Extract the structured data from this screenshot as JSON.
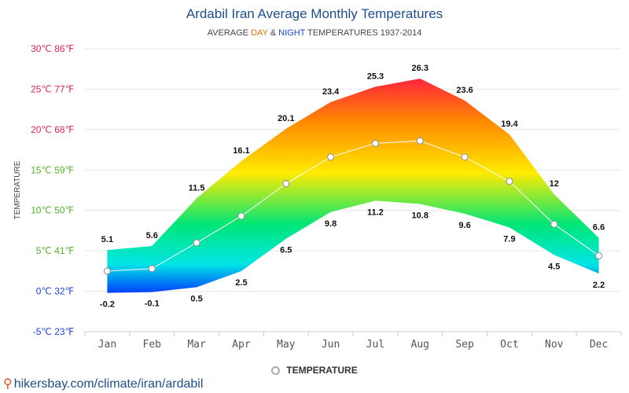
{
  "header": {
    "title": "Ardabil Iran Average Monthly Temperatures",
    "subtitle_prefix": "AVERAGE",
    "subtitle_day": "DAY",
    "subtitle_amp": "&",
    "subtitle_night": "NIGHT",
    "subtitle_suffix": "TEMPERATURES 1937-2014"
  },
  "legend": {
    "label": "TEMPERATURE",
    "icon": "circle-marker-icon"
  },
  "footer": {
    "icon": "location-pin-icon",
    "url": "hikersbay.com/climate/iran/ardabil"
  },
  "colors": {
    "title": "#1f4e8c",
    "day": "#e8700a",
    "night": "#1a45d8",
    "grid": "#e6e6e6",
    "gradient": [
      "#ff1744",
      "#ff8a00",
      "#ffeb00",
      "#00e676",
      "#00e5e5",
      "#0033ff"
    ]
  },
  "chart_data": {
    "type": "area",
    "ylabel": "TEMPERATURE",
    "ylim": [
      -5,
      30
    ],
    "yticks": [
      {
        "value": 30,
        "label": "30℃ 86℉",
        "color": "#e0245e"
      },
      {
        "value": 25,
        "label": "25℃ 77℉",
        "color": "#e0245e"
      },
      {
        "value": 20,
        "label": "20℃ 68℉",
        "color": "#e0245e"
      },
      {
        "value": 15,
        "label": "15℃ 59℉",
        "color": "#55b12c"
      },
      {
        "value": 10,
        "label": "10℃ 50℉",
        "color": "#55b12c"
      },
      {
        "value": 5,
        "label": "5℃ 41℉",
        "color": "#55b12c"
      },
      {
        "value": 0,
        "label": "0℃ 32℉",
        "color": "#1a45d8"
      },
      {
        "value": -5,
        "label": "-5℃ 23℉",
        "color": "#1a45d8"
      }
    ],
    "categories": [
      "Jan",
      "Feb",
      "Mar",
      "Apr",
      "May",
      "Jun",
      "Jul",
      "Aug",
      "Sep",
      "Oct",
      "Nov",
      "Dec"
    ],
    "day": [
      5.1,
      5.6,
      11.5,
      16.1,
      20.1,
      23.4,
      25.3,
      26.3,
      23.6,
      19.4,
      12,
      6.6
    ],
    "night": [
      -0.2,
      -0.1,
      0.5,
      2.5,
      6.5,
      9.8,
      11.2,
      10.8,
      9.6,
      7.9,
      4.5,
      2.2
    ],
    "day_labels": [
      "5.1",
      "5.6",
      "11.5",
      "16.1",
      "20.1",
      "23.4",
      "25.3",
      "26.3",
      "23.6",
      "19.4",
      "12",
      "6.6"
    ],
    "night_labels": [
      "-0.2",
      "-0.1",
      "0.5",
      "2.5",
      "6.5",
      "9.8",
      "11.2",
      "10.8",
      "9.6",
      "7.9",
      "4.5",
      "2.2"
    ],
    "series": [
      {
        "name": "TEMPERATURE",
        "values": [
          2.5,
          2.8,
          6.0,
          9.3,
          13.3,
          16.6,
          18.3,
          18.6,
          16.6,
          13.6,
          8.3,
          4.4
        ]
      }
    ],
    "grid": true,
    "legend_position": "bottom-center"
  }
}
